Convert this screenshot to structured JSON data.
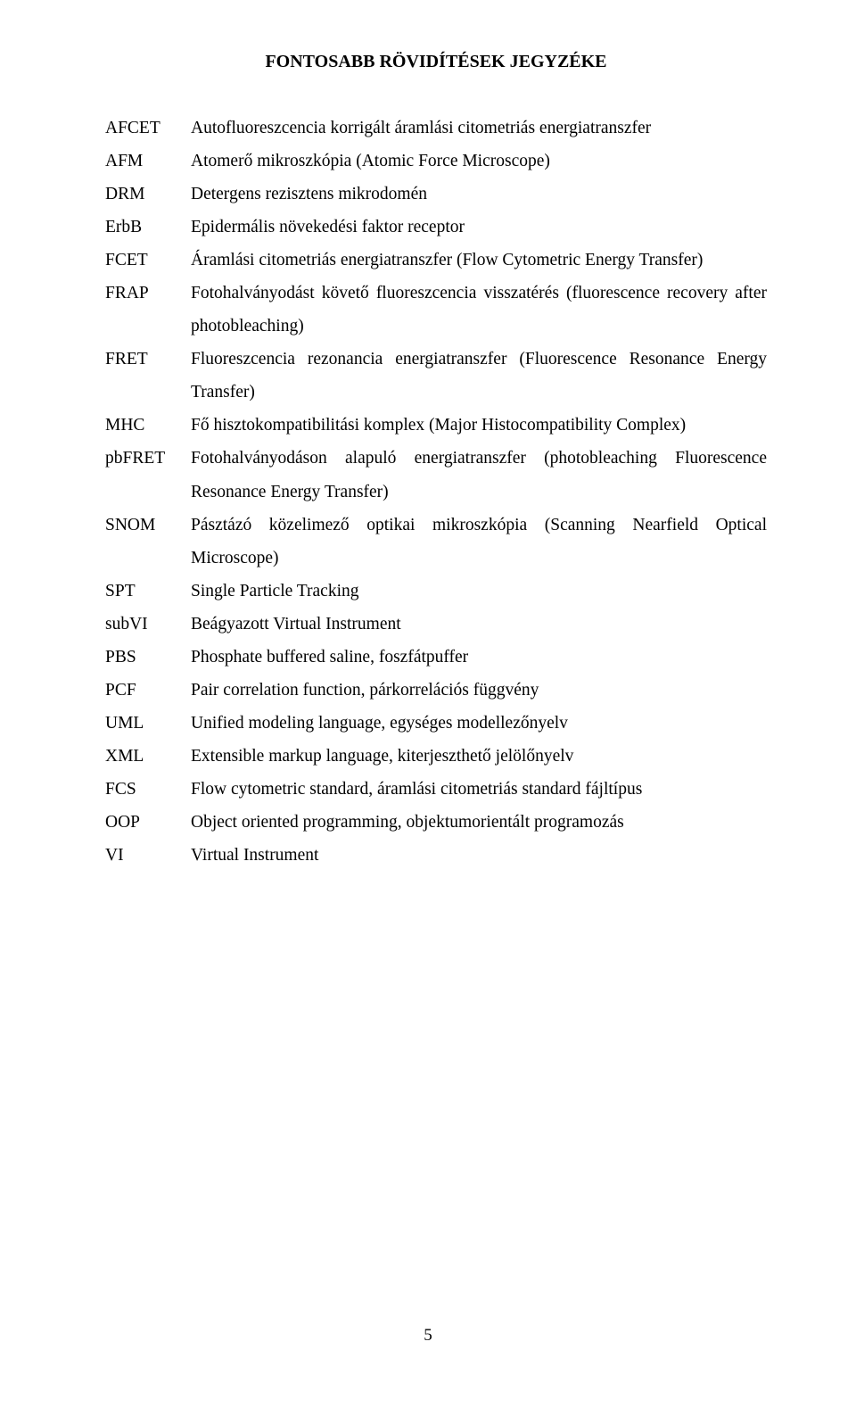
{
  "title": "FONTOSABB RÖVIDÍTÉSEK JEGYZÉKE",
  "page_number": "5",
  "entries": [
    {
      "abbrev": "AFCET",
      "def": "Autofluoreszcencia korrigált áramlási citometriás energiatranszfer"
    },
    {
      "abbrev": "AFM",
      "def": "Atomerő mikroszkópia (Atomic Force Microscope)"
    },
    {
      "abbrev": "DRM",
      "def": "Detergens rezisztens mikrodomén"
    },
    {
      "abbrev": "ErbB",
      "def": "Epidermális növekedési faktor receptor"
    },
    {
      "abbrev": "FCET",
      "def": "Áramlási citometriás energiatranszfer (Flow Cytometric Energy Transfer)"
    },
    {
      "abbrev": "FRAP",
      "def1": "Fotohalványodást követő fluoreszcencia visszatérés (fluorescence recovery after",
      "def2": "photobleaching)"
    },
    {
      "abbrev": "FRET",
      "def1": "Fluoreszcencia rezonancia energiatranszfer (Fluorescence Resonance Energy",
      "def2": "Transfer)"
    },
    {
      "abbrev": "MHC",
      "def": "Fő hisztokompatibilitási komplex (Major Histocompatibility Complex)"
    },
    {
      "abbrev": "pbFRET",
      "def1": "Fotohalványodáson alapuló energiatranszfer (photobleaching Fluorescence",
      "def2": "Resonance Energy Transfer)"
    },
    {
      "abbrev": "SNOM",
      "def1": "Pásztázó közelimező optikai mikroszkópia (Scanning Nearfield Optical",
      "def2": "Microscope)"
    },
    {
      "abbrev": "SPT",
      "def": "Single Particle Tracking"
    },
    {
      "abbrev": "subVI",
      "def": "Beágyazott Virtual Instrument"
    },
    {
      "abbrev": "PBS",
      "def": "Phosphate buffered saline, foszfátpuffer"
    },
    {
      "abbrev": "PCF",
      "def": "Pair correlation function, párkorrelációs függvény"
    },
    {
      "abbrev": "UML",
      "def": "Unified modeling language, egységes modellezőnyelv"
    },
    {
      "abbrev": "XML",
      "def": "Extensible markup language, kiterjeszthető jelölőnyelv"
    },
    {
      "abbrev": "FCS",
      "def": "Flow cytometric standard, áramlási citometriás standard fájltípus"
    },
    {
      "abbrev": "OOP",
      "def": "Object oriented programming, objektumorientált programozás"
    },
    {
      "abbrev": "VI",
      "def": "Virtual Instrument"
    }
  ]
}
